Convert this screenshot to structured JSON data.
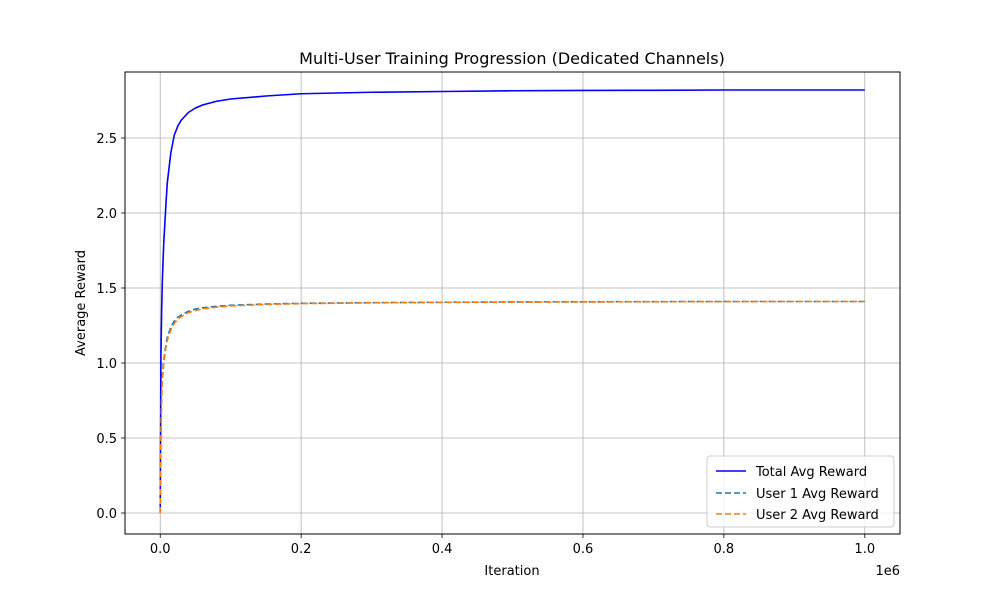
{
  "chart_data": {
    "type": "line",
    "title": "Multi-User Training Progression (Dedicated Channels)",
    "xlabel": "Iteration",
    "ylabel": "Average Reward",
    "x_offset_text": "1e6",
    "xlim": [
      -50000,
      1050000
    ],
    "ylim": [
      -0.14,
      2.94
    ],
    "xticks": [
      0,
      200000,
      400000,
      600000,
      800000,
      1000000
    ],
    "xtick_labels": [
      "0.0",
      "0.2",
      "0.4",
      "0.6",
      "0.8",
      "1.0"
    ],
    "yticks": [
      0.0,
      0.5,
      1.0,
      1.5,
      2.0,
      2.5
    ],
    "ytick_labels": [
      "0.0",
      "0.5",
      "1.0",
      "1.5",
      "2.0",
      "2.5"
    ],
    "grid": true,
    "legend_position": "lower right",
    "series": [
      {
        "name": "Total Avg Reward",
        "color": "#0000ff",
        "style": "solid",
        "x": [
          0,
          1000,
          2000,
          3000,
          5000,
          8000,
          10000,
          15000,
          20000,
          25000,
          30000,
          40000,
          50000,
          60000,
          80000,
          100000,
          150000,
          200000,
          300000,
          400000,
          500000,
          600000,
          700000,
          800000,
          900000,
          1000000
        ],
        "values": [
          0.0,
          1.05,
          1.35,
          1.55,
          1.8,
          2.05,
          2.2,
          2.4,
          2.52,
          2.58,
          2.62,
          2.67,
          2.7,
          2.72,
          2.745,
          2.76,
          2.78,
          2.795,
          2.805,
          2.81,
          2.815,
          2.817,
          2.818,
          2.82,
          2.82,
          2.82
        ]
      },
      {
        "name": "User 1 Avg Reward",
        "color": "#1f77b4",
        "style": "dashed",
        "x": [
          0,
          1000,
          2000,
          3000,
          5000,
          8000,
          10000,
          15000,
          20000,
          25000,
          30000,
          40000,
          50000,
          60000,
          80000,
          100000,
          150000,
          200000,
          300000,
          400000,
          500000,
          600000,
          700000,
          800000,
          900000,
          1000000
        ],
        "values": [
          0.0,
          0.55,
          0.8,
          0.92,
          1.02,
          1.12,
          1.17,
          1.24,
          1.28,
          1.305,
          1.32,
          1.345,
          1.36,
          1.368,
          1.378,
          1.385,
          1.393,
          1.398,
          1.402,
          1.405,
          1.407,
          1.408,
          1.409,
          1.41,
          1.41,
          1.41
        ]
      },
      {
        "name": "User 2 Avg Reward",
        "color": "#ff7f0e",
        "style": "dashed",
        "x": [
          0,
          1000,
          2000,
          3000,
          5000,
          8000,
          10000,
          15000,
          20000,
          25000,
          30000,
          40000,
          50000,
          60000,
          80000,
          100000,
          150000,
          200000,
          300000,
          400000,
          500000,
          600000,
          700000,
          800000,
          900000,
          1000000
        ],
        "values": [
          0.0,
          0.5,
          0.75,
          0.88,
          1.0,
          1.1,
          1.15,
          1.22,
          1.265,
          1.29,
          1.31,
          1.335,
          1.35,
          1.36,
          1.372,
          1.38,
          1.39,
          1.396,
          1.401,
          1.404,
          1.406,
          1.407,
          1.408,
          1.409,
          1.41,
          1.41
        ]
      }
    ]
  }
}
